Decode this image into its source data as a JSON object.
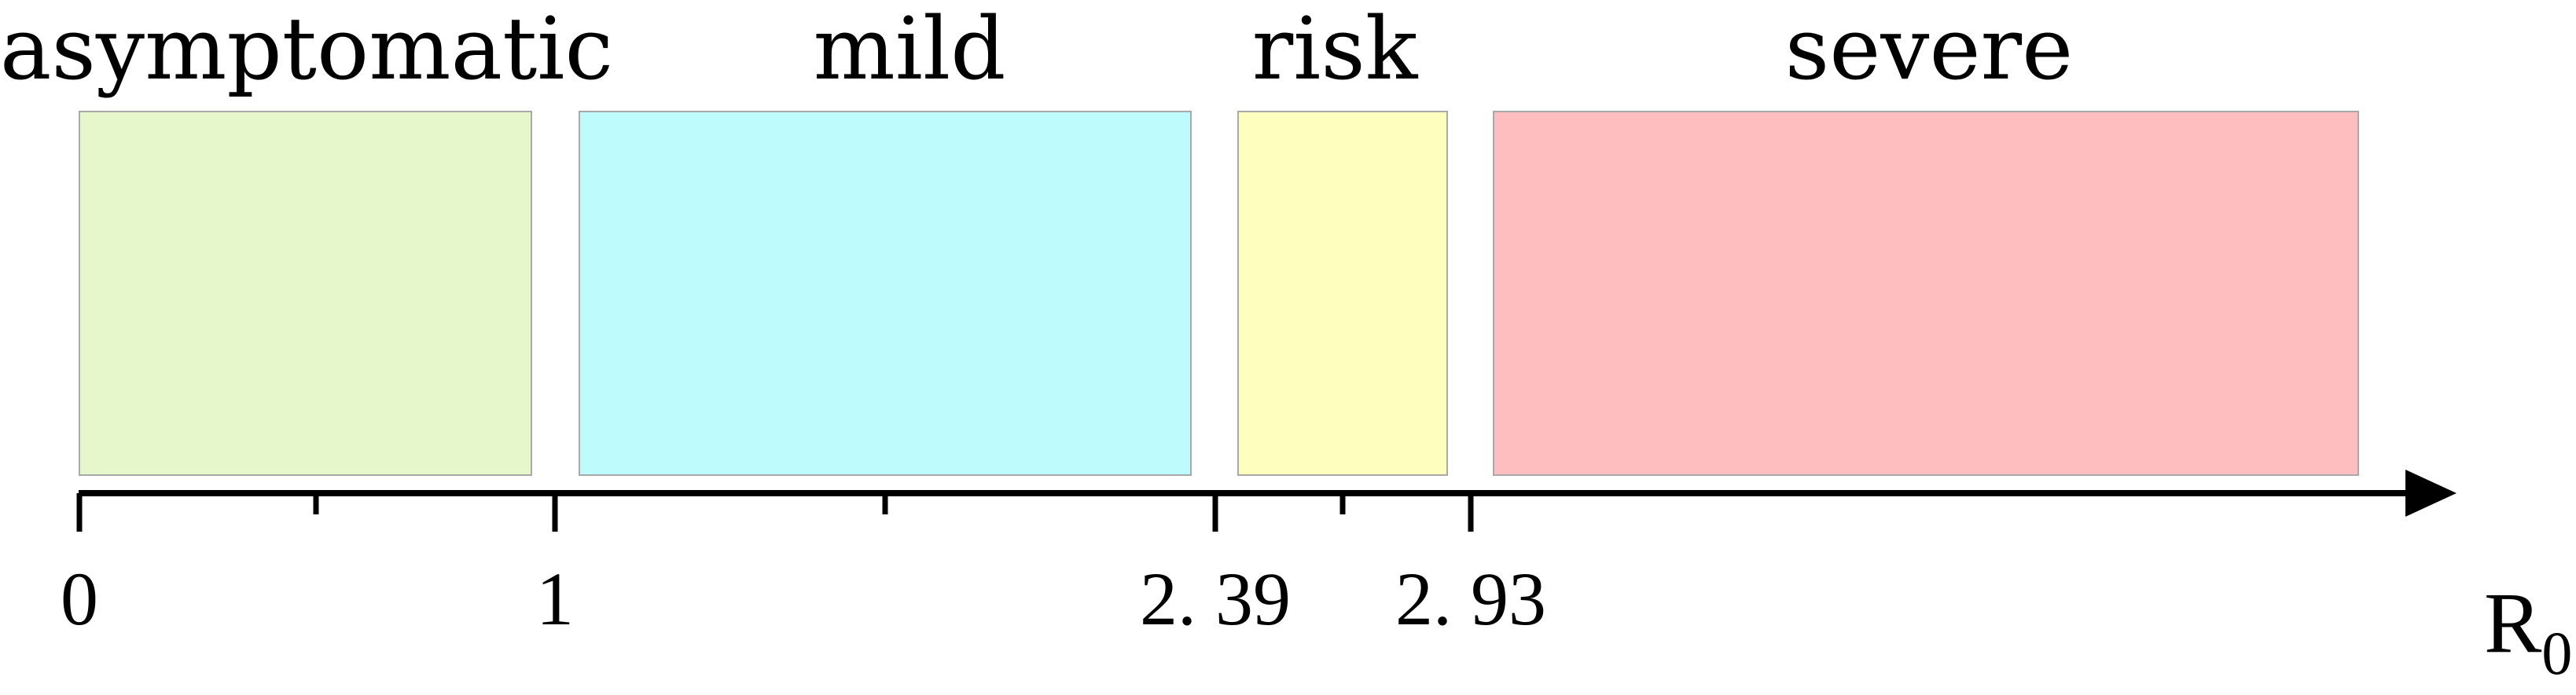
{
  "zones": [
    {
      "label": "asymptomatic",
      "color": "#e6f7cc"
    },
    {
      "label": "mild",
      "color": "#bdfbfc"
    },
    {
      "label": "risk",
      "color": "#fefebf"
    },
    {
      "label": "severe",
      "color": "#febdbe"
    }
  ],
  "axis": {
    "tick_labels": [
      "0",
      "1",
      "2. 39",
      "2. 93"
    ],
    "label_main": "R",
    "label_sub": "0"
  }
}
